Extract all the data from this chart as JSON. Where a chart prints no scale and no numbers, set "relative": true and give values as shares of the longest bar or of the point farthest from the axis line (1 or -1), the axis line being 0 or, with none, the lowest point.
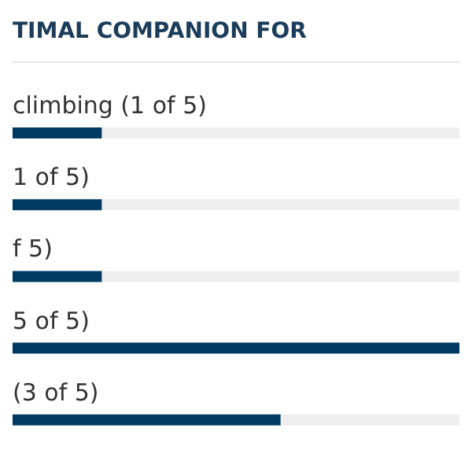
{
  "chart_data": {
    "type": "bar",
    "orientation": "horizontal",
    "stacked": true,
    "relative": true,
    "title": "TIMAL COMPANION FOR",
    "categories": [
      "climbing (1 of 5)",
      "1 of 5)",
      "f 5)",
      "5 of 5)",
      "(3 of 5)"
    ],
    "series": [
      {
        "color": "#003a63",
        "values": [
          0.2,
          0.2,
          0.2,
          1,
          0.6
        ]
      },
      {
        "color": "#eeeeee",
        "values": [
          0.8,
          0.8,
          0.8,
          0,
          0.4
        ]
      }
    ],
    "tick_labels": false,
    "grid": false,
    "legend": false
  }
}
